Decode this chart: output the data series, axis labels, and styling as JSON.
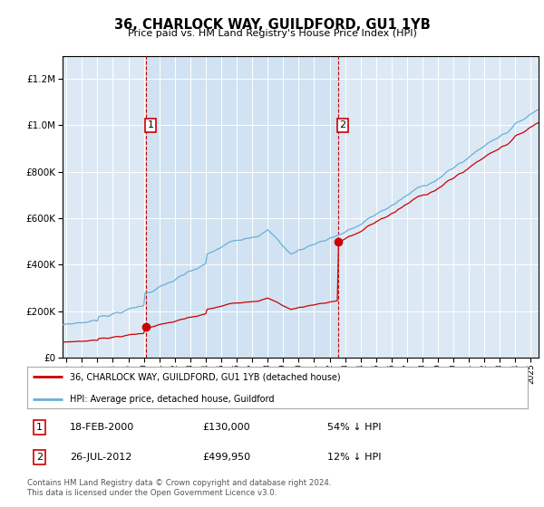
{
  "title": "36, CHARLOCK WAY, GUILDFORD, GU1 1YB",
  "subtitle": "Price paid vs. HM Land Registry's House Price Index (HPI)",
  "legend_line1": "36, CHARLOCK WAY, GUILDFORD, GU1 1YB (detached house)",
  "legend_line2": "HPI: Average price, detached house, Guildford",
  "transaction1_date": "18-FEB-2000",
  "transaction1_price": "£130,000",
  "transaction1_hpi": "54% ↓ HPI",
  "transaction2_date": "26-JUL-2012",
  "transaction2_price": "£499,950",
  "transaction2_hpi": "12% ↓ HPI",
  "footer": "Contains HM Land Registry data © Crown copyright and database right 2024.\nThis data is licensed under the Open Government Licence v3.0.",
  "hpi_color": "#6baed6",
  "price_color": "#cc0000",
  "vline_color": "#cc0000",
  "background_color": "#dce9f5",
  "fill_color": "#c6dff0",
  "ylim_max": 1300000,
  "xlim_start": 1994.75,
  "xlim_end": 2025.5
}
